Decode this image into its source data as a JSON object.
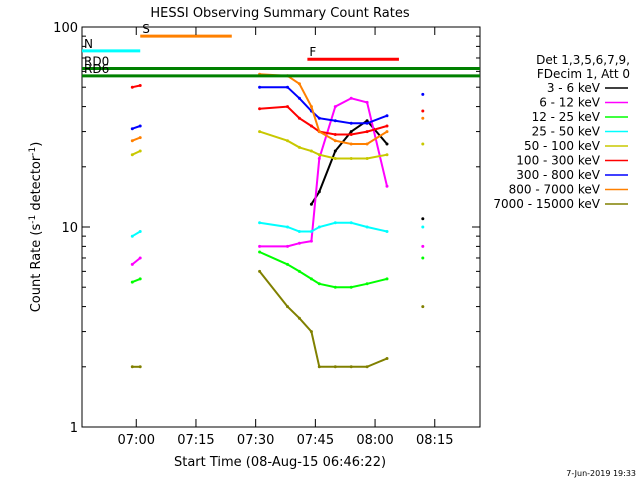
{
  "chart_data": {
    "type": "line",
    "title": "HESSI Observing Summary Count Rates",
    "xlabel": "Start Time (08-Aug-15 06:46:22)",
    "ylabel_main": "Count Rate (s",
    "ylabel_sup1": "-1",
    "ylabel_mid": " detector",
    "ylabel_sup2": "-1",
    "ylabel_end": ")",
    "yscale": "log",
    "ylim": [
      1,
      100
    ],
    "xlim": [
      "06:46:22",
      "08:26:22"
    ],
    "x_ticks": [
      "07:00",
      "07:15",
      "07:30",
      "07:45",
      "08:00",
      "08:15"
    ],
    "y_ticks": [
      "1",
      "10",
      "100"
    ],
    "grid": false,
    "legend_position": "right",
    "legend_header": [
      "Det 1,3,5,6,7,9,",
      "FDecim 1, Att 0"
    ],
    "series": [
      {
        "name": "3 - 6 keV",
        "color": "#000000",
        "x": [
          "06:55",
          "06:59",
          "07:01",
          "07:27",
          "07:31",
          "07:38",
          "07:41",
          "07:44",
          "07:46",
          "07:50",
          "07:54",
          "07:58",
          "08:03",
          "08:07",
          "08:12"
        ],
        "values": [
          null,
          null,
          null,
          null,
          null,
          null,
          null,
          13,
          15,
          24,
          30,
          34,
          26,
          null,
          11
        ]
      },
      {
        "name": "6 - 12 keV",
        "color": "#ff00ff",
        "x": [
          "06:55",
          "06:59",
          "07:01",
          "07:27",
          "07:31",
          "07:38",
          "07:41",
          "07:44",
          "07:46",
          "07:50",
          "07:54",
          "07:58",
          "08:03",
          "08:07",
          "08:12"
        ],
        "values": [
          null,
          6.5,
          7,
          null,
          8,
          8,
          8.3,
          8.5,
          22,
          40,
          44,
          42,
          16,
          null,
          8
        ]
      },
      {
        "name": "12 - 25 keV",
        "color": "#00ff00",
        "x": [
          "06:55",
          "06:59",
          "07:01",
          "07:27",
          "07:31",
          "07:38",
          "07:41",
          "07:44",
          "07:46",
          "07:50",
          "07:54",
          "07:58",
          "08:03",
          "08:07",
          "08:12"
        ],
        "values": [
          null,
          5.3,
          5.5,
          null,
          7.5,
          6.5,
          6,
          5.5,
          5.2,
          5,
          5,
          5.2,
          5.5,
          null,
          7
        ]
      },
      {
        "name": "25 - 50 keV",
        "color": "#00ffff",
        "x": [
          "06:55",
          "06:59",
          "07:01",
          "07:27",
          "07:31",
          "07:38",
          "07:41",
          "07:44",
          "07:46",
          "07:50",
          "07:54",
          "07:58",
          "08:03",
          "08:07",
          "08:12"
        ],
        "values": [
          null,
          9,
          9.5,
          null,
          10.5,
          10,
          9.5,
          9.5,
          10,
          10.5,
          10.5,
          10,
          9.5,
          null,
          10
        ]
      },
      {
        "name": "50 - 100 keV",
        "color": "#c8c800",
        "x": [
          "06:55",
          "06:59",
          "07:01",
          "07:27",
          "07:31",
          "07:38",
          "07:41",
          "07:44",
          "07:46",
          "07:50",
          "07:54",
          "07:58",
          "08:03",
          "08:07",
          "08:12"
        ],
        "values": [
          null,
          23,
          24,
          null,
          30,
          27,
          25,
          24,
          23,
          22,
          22,
          22,
          23,
          null,
          26
        ]
      },
      {
        "name": "100 - 300 keV",
        "color": "#ff0000",
        "x": [
          "06:55",
          "06:59",
          "07:01",
          "07:27",
          "07:31",
          "07:38",
          "07:41",
          "07:44",
          "07:46",
          "07:50",
          "07:54",
          "07:58",
          "08:03",
          "08:07",
          "08:12"
        ],
        "values": [
          null,
          50,
          51,
          null,
          39,
          40,
          35,
          32,
          30,
          29,
          29,
          30,
          32,
          null,
          38
        ]
      },
      {
        "name": "300 - 800 keV",
        "color": "#0000ff",
        "x": [
          "06:55",
          "06:59",
          "07:01",
          "07:27",
          "07:31",
          "07:38",
          "07:41",
          "07:44",
          "07:46",
          "07:50",
          "07:54",
          "07:58",
          "08:03",
          "08:07",
          "08:12"
        ],
        "values": [
          null,
          31,
          32,
          null,
          50,
          50,
          44,
          38,
          35,
          34,
          33,
          33,
          36,
          null,
          46
        ]
      },
      {
        "name": "800 - 7000 keV",
        "color": "#ff8000",
        "x": [
          "06:55",
          "06:59",
          "07:01",
          "07:27",
          "07:31",
          "07:38",
          "07:41",
          "07:44",
          "07:46",
          "07:50",
          "07:54",
          "07:58",
          "08:03",
          "08:07",
          "08:12"
        ],
        "values": [
          null,
          27,
          28,
          null,
          58,
          57,
          52,
          40,
          30,
          27,
          26,
          26,
          30,
          null,
          35
        ]
      },
      {
        "name": "7000 - 15000 keV",
        "color": "#808000",
        "x": [
          "06:55",
          "06:59",
          "07:01",
          "07:27",
          "07:31",
          "07:38",
          "07:41",
          "07:44",
          "07:46",
          "07:50",
          "07:54",
          "07:58",
          "08:03",
          "08:07",
          "08:12"
        ],
        "values": [
          null,
          2,
          2,
          null,
          6,
          4,
          3.5,
          3,
          2,
          2,
          2,
          2,
          2.2,
          null,
          4
        ]
      }
    ],
    "annotations": [
      {
        "label": "RD0",
        "color": "#008000",
        "x_range": [
          "06:46:22",
          "08:26:22"
        ],
        "y": 62
      },
      {
        "label": "RD6",
        "color": "#008000",
        "x_range": [
          "06:46:22",
          "08:26:22"
        ],
        "y": 57
      },
      {
        "label": "S",
        "color": "#ff8000",
        "x_range": [
          "07:01",
          "07:24"
        ],
        "y": 90
      },
      {
        "label": "N",
        "color": "#00ffff",
        "x_range": [
          "06:46:22",
          "07:01"
        ],
        "y": 76
      },
      {
        "label": "F",
        "color": "#ff0000",
        "x_range": [
          "07:43",
          "08:06"
        ],
        "y": 69
      }
    ]
  },
  "footer_timestamp": "7-Jun-2019 19:33"
}
